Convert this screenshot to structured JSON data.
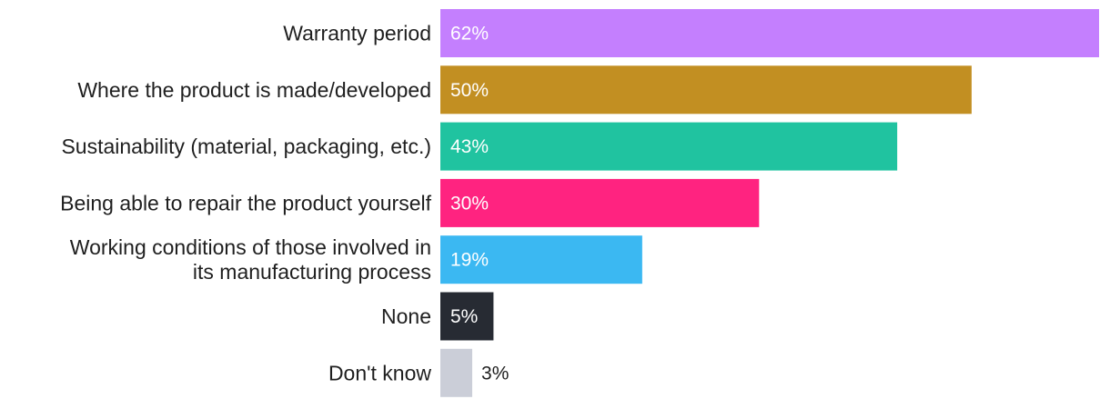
{
  "chart_data": {
    "type": "bar",
    "orientation": "horizontal",
    "title": "",
    "xlabel": "",
    "ylabel": "",
    "xlim": [
      0,
      62
    ],
    "grid": false,
    "legend": "none",
    "categories": [
      "Warranty period",
      "Where the product is made/developed",
      "Sustainability (material, packaging, etc.)",
      "Being able to repair the product yourself",
      "Working conditions of those involved in its manufacturing process",
      "None",
      "Don't know"
    ],
    "category_lines": [
      [
        "Warranty period"
      ],
      [
        "Where the product is made/developed"
      ],
      [
        "Sustainability (material, packaging, etc.)"
      ],
      [
        "Being able to repair the product yourself"
      ],
      [
        "Working conditions of those involved in",
        "its manufacturing process"
      ],
      [
        "None"
      ],
      [
        "Don't know"
      ]
    ],
    "values": [
      62,
      50,
      43,
      30,
      19,
      5,
      3
    ],
    "value_labels": [
      "62%",
      "50%",
      "43%",
      "30%",
      "19%",
      "5%",
      "3%"
    ],
    "colors": [
      "#c47ffe",
      "#c28f22",
      "#20c3a0",
      "#ff2380",
      "#3bb8f2",
      "#272b33",
      "#cbced8"
    ],
    "label_colors": [
      "#ffffff",
      "#ffffff",
      "#ffffff",
      "#ffffff",
      "#ffffff",
      "#ffffff",
      "#1f1f1f"
    ]
  }
}
